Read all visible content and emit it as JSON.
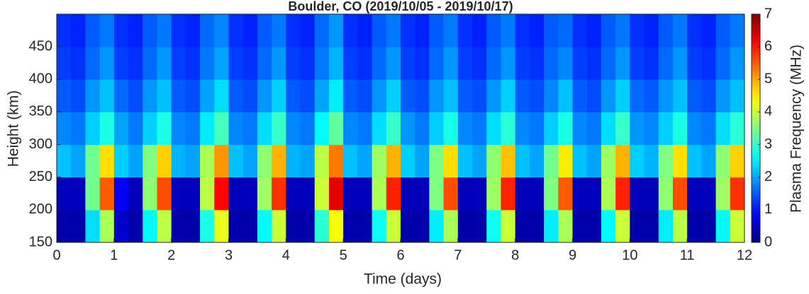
{
  "chart_data": {
    "type": "heatmap",
    "title": "Boulder, CO (2019/10/05 - 2019/10/17)",
    "x_label": "Time (days)",
    "y_label": "Height (km)",
    "colorbar_label": "Plasma Frequency (MHz)",
    "colormap": "jet",
    "x_edges": [
      0,
      0.25,
      0.5,
      0.75,
      1,
      1.25,
      1.5,
      1.75,
      2,
      2.25,
      2.5,
      2.75,
      3,
      3.25,
      3.5,
      3.75,
      4,
      4.25,
      4.5,
      4.75,
      5,
      5.25,
      5.5,
      5.75,
      6,
      6.25,
      6.5,
      6.75,
      7,
      7.25,
      7.5,
      7.75,
      8,
      8.25,
      8.5,
      8.75,
      9,
      9.25,
      9.5,
      9.75,
      10,
      10.25,
      10.5,
      10.75,
      11,
      11.25,
      11.5,
      11.75,
      12
    ],
    "y_edges": [
      150,
      200,
      250,
      300,
      350,
      400,
      450,
      500
    ],
    "z": [
      [
        0.3,
        0.3,
        2.4,
        3.8,
        0.5,
        0.3,
        2.6,
        3.9,
        0.3,
        0.3,
        2.8,
        4.2,
        0.3,
        0.3,
        2.6,
        4.0,
        0.3,
        0.3,
        2.9,
        4.3,
        0.3,
        0.3,
        2.7,
        4.0,
        0.3,
        0.3,
        2.5,
        3.8,
        0.3,
        0.3,
        2.7,
        4.0,
        0.3,
        0.3,
        2.5,
        3.8,
        0.3,
        0.3,
        2.6,
        4.0,
        0.3,
        0.3,
        2.5,
        3.9,
        0.3,
        0.3,
        2.6,
        4.0
      ],
      [
        0.4,
        0.4,
        3.4,
        5.5,
        0.8,
        0.4,
        3.6,
        5.6,
        0.4,
        0.4,
        3.9,
        6.1,
        0.4,
        0.4,
        3.7,
        5.8,
        0.4,
        0.4,
        4.0,
        6.3,
        0.4,
        0.4,
        3.8,
        5.9,
        0.4,
        0.4,
        3.5,
        5.6,
        0.4,
        0.4,
        3.7,
        5.9,
        0.4,
        0.4,
        3.5,
        5.5,
        0.4,
        0.4,
        3.8,
        5.9,
        0.4,
        0.4,
        3.6,
        5.6,
        0.4,
        0.4,
        3.7,
        5.8
      ],
      [
        2.2,
        2.0,
        3.4,
        4.6,
        2.3,
        2.0,
        3.5,
        4.7,
        2.1,
        2.0,
        3.8,
        5.1,
        2.2,
        2.0,
        3.6,
        4.9,
        2.1,
        2.0,
        3.9,
        5.3,
        2.2,
        2.0,
        3.7,
        4.9,
        2.3,
        2.0,
        3.5,
        4.6,
        2.2,
        2.0,
        3.6,
        4.8,
        2.2,
        2.0,
        3.4,
        4.5,
        2.2,
        2.0,
        3.7,
        4.9,
        2.3,
        2.1,
        3.5,
        4.6,
        2.2,
        2.0,
        3.6,
        4.7
      ],
      [
        1.8,
        1.7,
        2.3,
        2.8,
        2.0,
        1.7,
        2.3,
        2.8,
        1.8,
        1.7,
        2.5,
        3.1,
        1.8,
        1.7,
        2.4,
        3.0,
        1.8,
        1.7,
        2.6,
        3.3,
        1.8,
        1.7,
        2.4,
        3.0,
        1.9,
        1.7,
        2.3,
        2.8,
        1.8,
        1.7,
        2.4,
        2.9,
        1.8,
        1.7,
        2.3,
        2.8,
        1.8,
        1.7,
        2.4,
        3.0,
        1.9,
        1.8,
        2.3,
        2.8,
        1.8,
        1.7,
        2.4,
        2.9
      ],
      [
        1.5,
        1.4,
        1.9,
        2.2,
        1.6,
        1.4,
        1.9,
        2.2,
        1.5,
        1.4,
        2.0,
        2.4,
        1.5,
        1.4,
        1.9,
        2.3,
        1.5,
        1.4,
        2.0,
        2.5,
        1.5,
        1.4,
        1.9,
        2.3,
        1.5,
        1.4,
        1.9,
        2.2,
        1.5,
        1.4,
        1.9,
        2.3,
        1.5,
        1.4,
        1.8,
        2.2,
        1.5,
        1.4,
        1.9,
        2.3,
        1.6,
        1.5,
        1.9,
        2.2,
        1.5,
        1.4,
        1.9,
        2.2
      ],
      [
        1.3,
        1.2,
        1.6,
        1.9,
        1.3,
        1.2,
        1.6,
        1.9,
        1.3,
        1.2,
        1.7,
        2.0,
        1.3,
        1.2,
        1.6,
        1.9,
        1.3,
        1.2,
        1.7,
        2.1,
        1.3,
        1.2,
        1.6,
        1.9,
        1.3,
        1.2,
        1.6,
        1.9,
        1.3,
        1.2,
        1.6,
        1.9,
        1.3,
        1.2,
        1.6,
        1.8,
        1.3,
        1.2,
        1.6,
        1.9,
        1.3,
        1.2,
        1.6,
        1.9,
        1.3,
        1.2,
        1.6,
        1.9
      ],
      [
        1.2,
        1.1,
        1.5,
        1.7,
        1.2,
        1.1,
        1.5,
        1.7,
        1.2,
        1.1,
        1.6,
        1.8,
        1.2,
        1.1,
        1.5,
        1.7,
        1.2,
        1.1,
        1.6,
        1.9,
        1.2,
        1.1,
        1.5,
        1.7,
        1.2,
        1.1,
        1.5,
        1.7,
        1.2,
        1.1,
        1.5,
        1.7,
        1.2,
        1.1,
        1.5,
        1.6,
        1.2,
        1.1,
        1.5,
        1.7,
        1.2,
        1.1,
        1.5,
        1.7,
        1.2,
        1.1,
        1.5,
        1.7
      ]
    ],
    "xlim": [
      0,
      12
    ],
    "xticks": [
      0,
      1,
      2,
      3,
      4,
      5,
      6,
      7,
      8,
      9,
      10,
      11,
      12
    ],
    "ylim": [
      150,
      500
    ],
    "yticks": [
      150,
      200,
      250,
      300,
      350,
      400,
      450
    ],
    "clim": [
      0,
      7
    ],
    "cticks": [
      0,
      1,
      2,
      3,
      4,
      5,
      6,
      7
    ]
  }
}
